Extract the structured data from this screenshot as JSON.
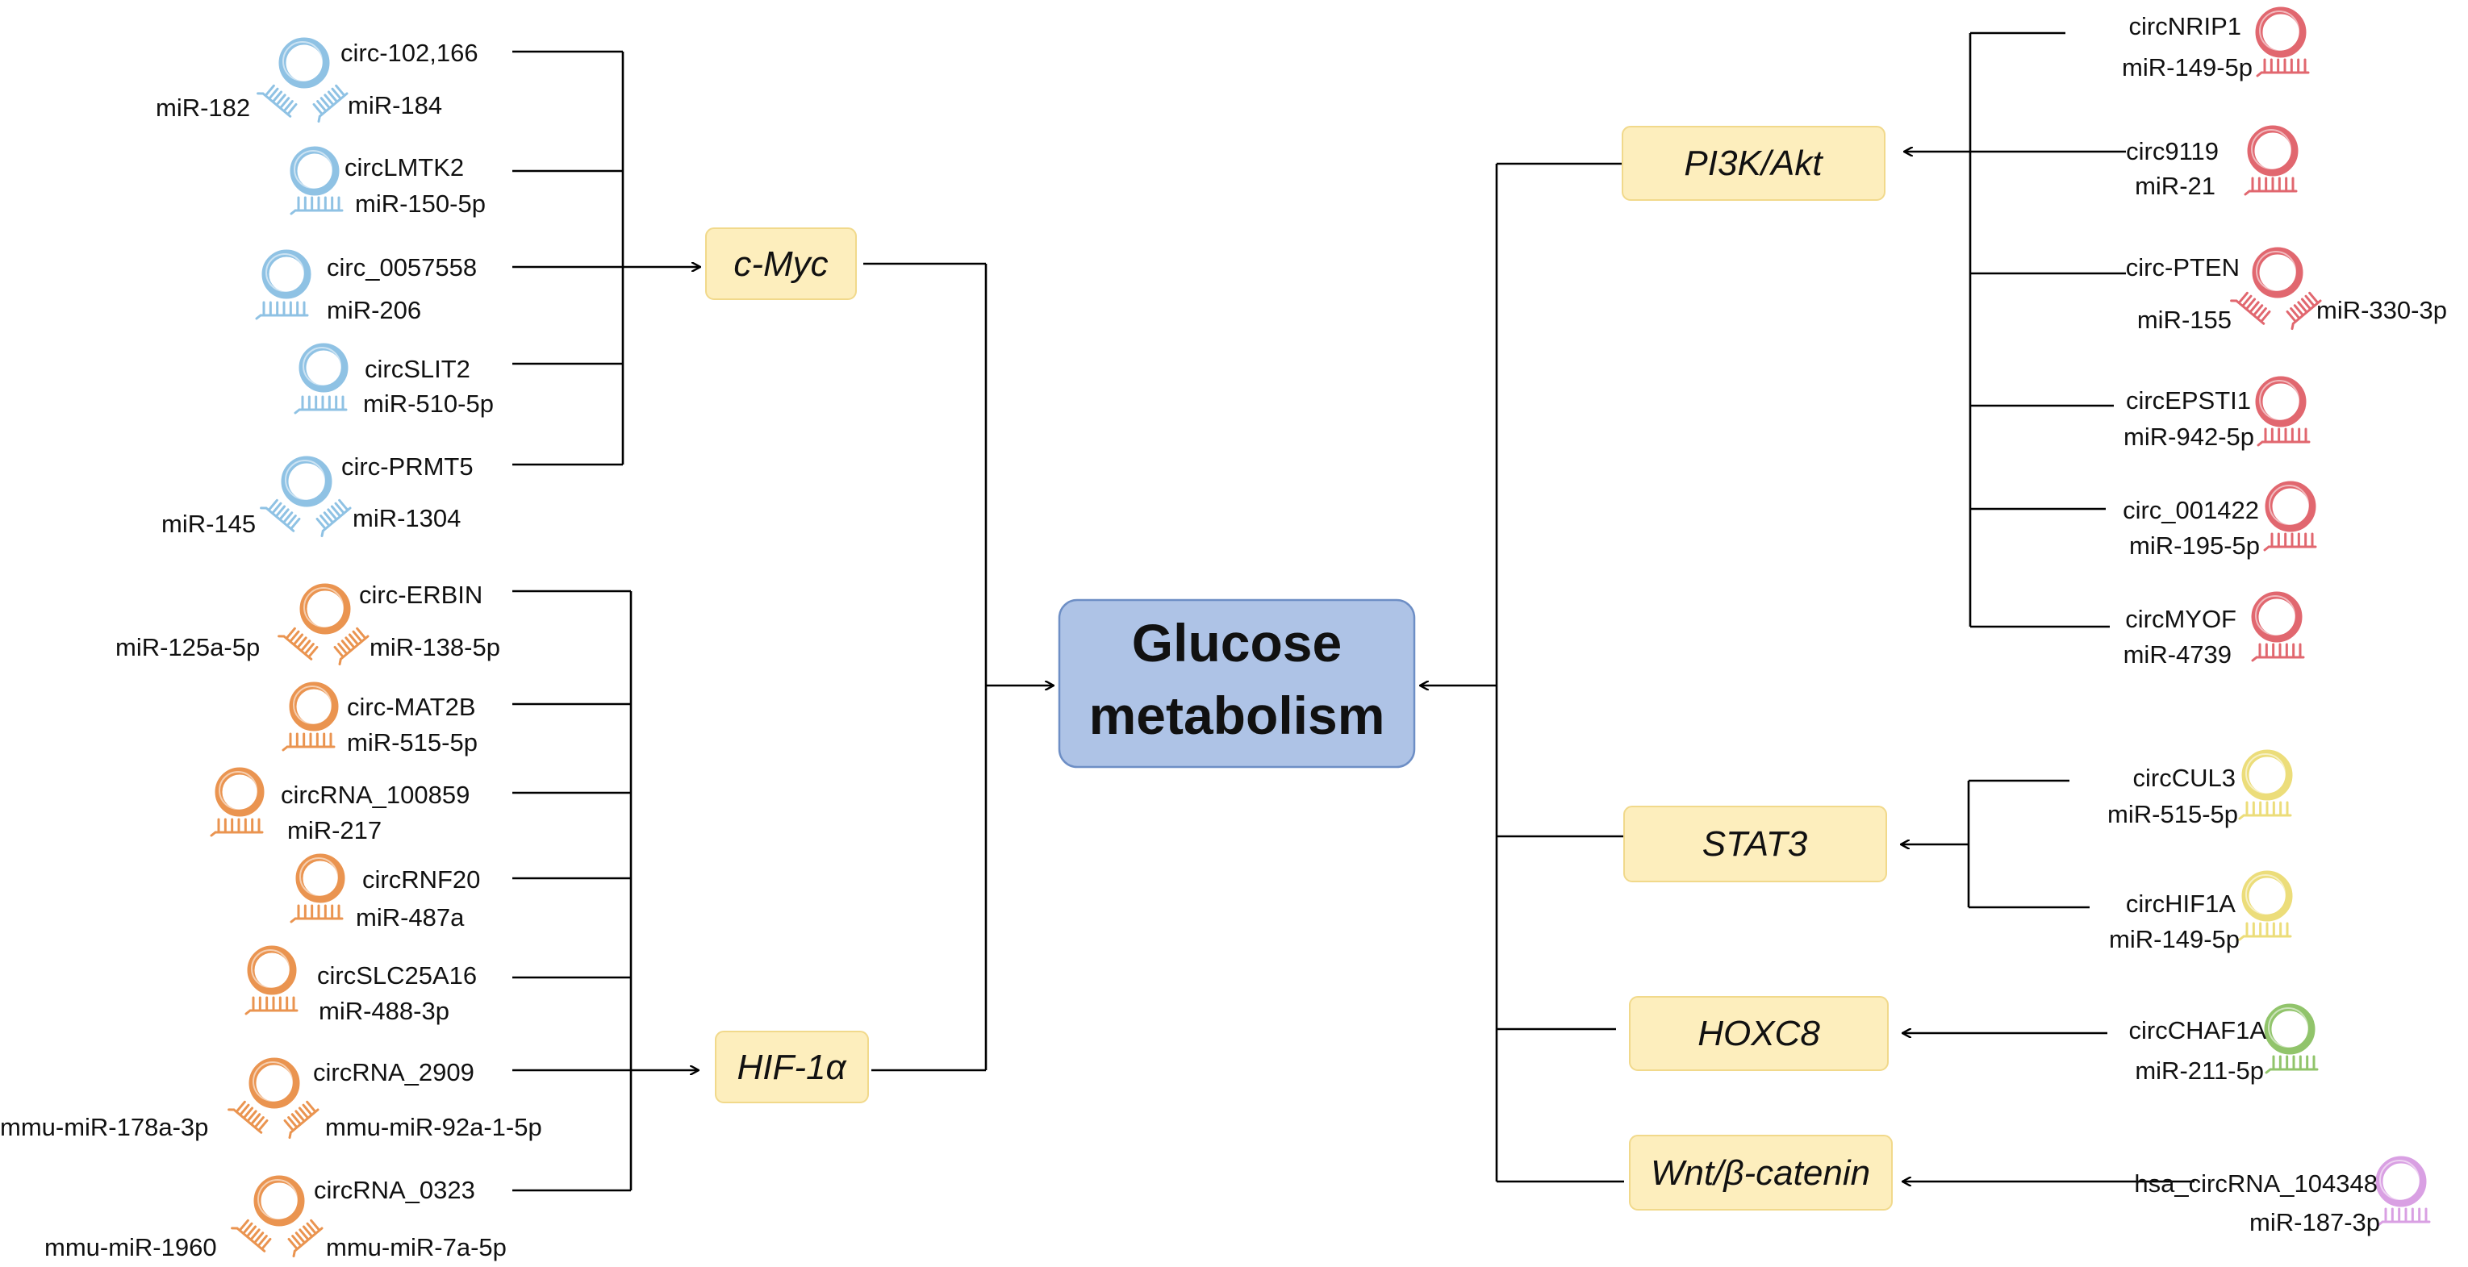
{
  "center": {
    "line1": "Glucose",
    "line2": "metabolism"
  },
  "colors": {
    "blue": "#8fc2e4",
    "orange": "#ea9450",
    "red": "#e1676f",
    "yellow": "#ecdd7a",
    "green": "#91c46b",
    "purple": "#d9a0e3",
    "pathway_fill": "#fdeebd",
    "center_fill": "#aec3e6"
  },
  "pathways": {
    "cmyc": "c-Myc",
    "hif1a": "HIF-1α",
    "pi3k": "PI3K/Akt",
    "stat3": "STAT3",
    "hoxc8": "HOXC8",
    "wnt": "Wnt/β-catenin"
  },
  "cmyc_circs": [
    {
      "circ": "circ-102,166",
      "mir_left": "miR-182",
      "mir_right": "miR-184"
    },
    {
      "circ": "circLMTK2",
      "mir": "miR-150-5p"
    },
    {
      "circ": "circ_0057558",
      "mir": "miR-206"
    },
    {
      "circ": "circSLIT2",
      "mir": "miR-510-5p"
    },
    {
      "circ": "circ-PRMT5",
      "mir_left": "miR-145",
      "mir_right": "miR-1304"
    }
  ],
  "hif_circs": [
    {
      "circ": "circ-ERBIN",
      "mir_left": "miR-125a-5p",
      "mir_right": "miR-138-5p"
    },
    {
      "circ": "circ-MAT2B",
      "mir": "miR-515-5p"
    },
    {
      "circ": "circRNA_100859",
      "mir": "miR-217"
    },
    {
      "circ": "circRNF20",
      "mir": "miR-487a"
    },
    {
      "circ": "circSLC25A16",
      "mir": "miR-488-3p"
    },
    {
      "circ": "circRNA_2909",
      "mir_left": "mmu-miR-178a-3p",
      "mir_right": "mmu-miR-92a-1-5p"
    },
    {
      "circ": "circRNA_0323",
      "mir_left": "mmu-miR-1960",
      "mir_right": "mmu-miR-7a-5p"
    }
  ],
  "pi3k_circs": [
    {
      "circ": "circNRIP1",
      "mir": "miR-149-5p"
    },
    {
      "circ": "circ9119",
      "mir": "miR-21"
    },
    {
      "circ": "circ-PTEN",
      "mir_left": "miR-155",
      "mir_right": "miR-330-3p"
    },
    {
      "circ": "circEPSTI1",
      "mir": "miR-942-5p"
    },
    {
      "circ": "circ_001422",
      "mir": "miR-195-5p"
    },
    {
      "circ": "circMYOF",
      "mir": "miR-4739"
    }
  ],
  "stat3_circs": [
    {
      "circ": "circCUL3",
      "mir": "miR-515-5p"
    },
    {
      "circ": "circHIF1A",
      "mir": "miR-149-5p"
    }
  ],
  "hoxc8_circs": [
    {
      "circ": "circCHAF1A",
      "mir": "miR-211-5p"
    }
  ],
  "wnt_circs": [
    {
      "circ": "hsa_circRNA_104348",
      "mir": "miR-187-3p"
    }
  ]
}
